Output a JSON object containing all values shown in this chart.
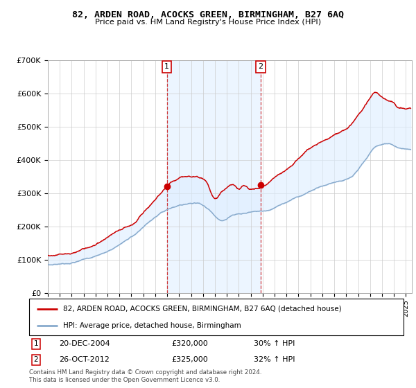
{
  "title": "82, ARDEN ROAD, ACOCKS GREEN, BIRMINGHAM, B27 6AQ",
  "subtitle": "Price paid vs. HM Land Registry's House Price Index (HPI)",
  "ylim": [
    0,
    700000
  ],
  "yticks": [
    0,
    100000,
    200000,
    300000,
    400000,
    500000,
    600000,
    700000
  ],
  "ytick_labels": [
    "£0",
    "£100K",
    "£200K",
    "£300K",
    "£400K",
    "£500K",
    "£600K",
    "£700K"
  ],
  "xlim_start": 1995.0,
  "xlim_end": 2025.5,
  "background_color": "#ffffff",
  "plot_bg_color": "#ffffff",
  "grid_color": "#cccccc",
  "sale1_x": 2004.97,
  "sale1_y": 320000,
  "sale2_x": 2012.82,
  "sale2_y": 325000,
  "legend_line1": "82, ARDEN ROAD, ACOCKS GREEN, BIRMINGHAM, B27 6AQ (detached house)",
  "legend_line2": "HPI: Average price, detached house, Birmingham",
  "footer_line1": "Contains HM Land Registry data © Crown copyright and database right 2024.",
  "footer_line2": "This data is licensed under the Open Government Licence v3.0.",
  "annot1_label": "1",
  "annot1_date": "20-DEC-2004",
  "annot1_price": "£320,000",
  "annot1_hpi": "30% ↑ HPI",
  "annot2_label": "2",
  "annot2_date": "26-OCT-2012",
  "annot2_price": "£325,000",
  "annot2_hpi": "32% ↑ HPI",
  "red_color": "#cc0000",
  "blue_color": "#88aacc",
  "shade_color": "#ddeeff"
}
